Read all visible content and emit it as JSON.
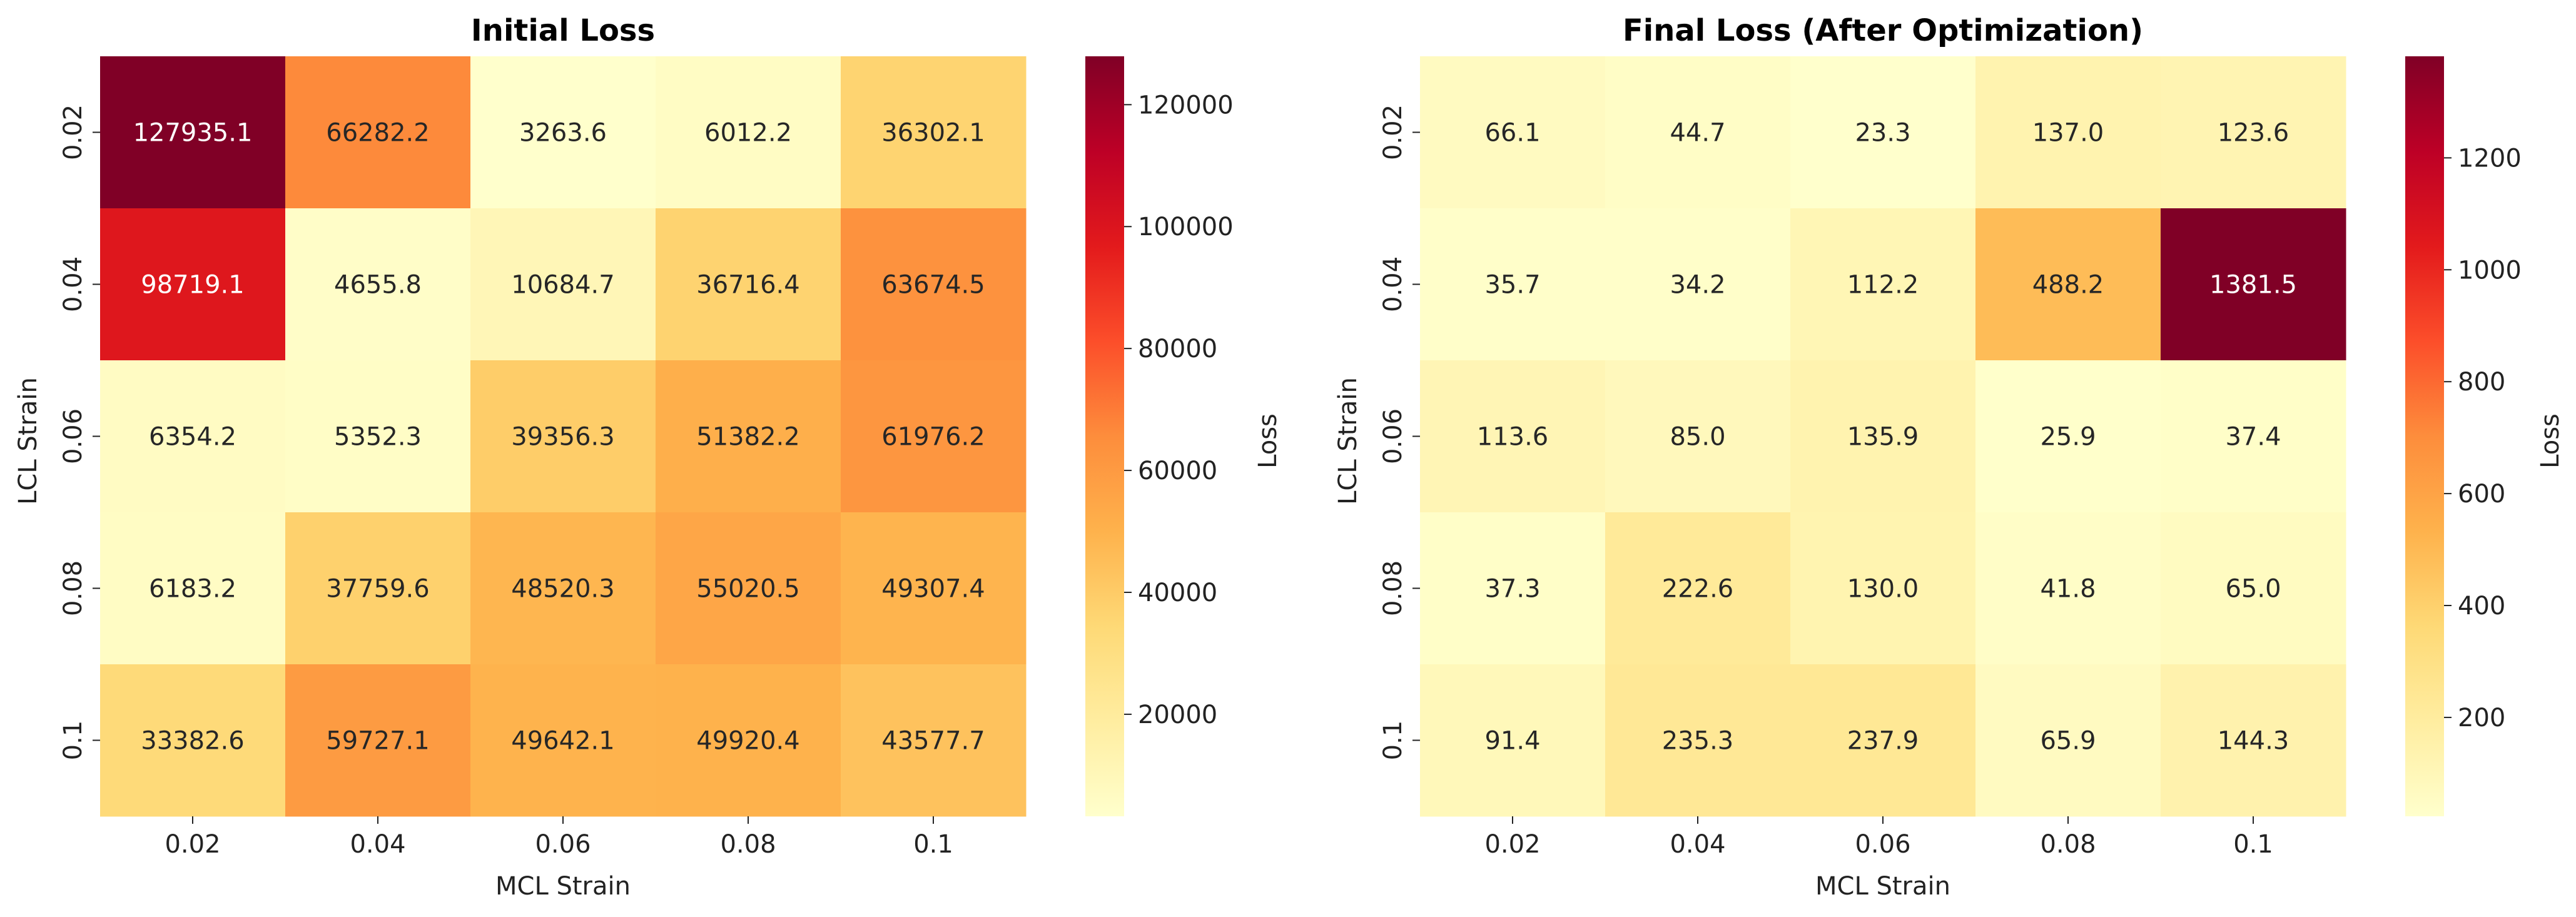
{
  "chart_data": [
    {
      "type": "heatmap",
      "title": "Initial Loss",
      "xlabel": "MCL Strain",
      "ylabel": "LCL Strain",
      "x_categories": [
        "0.02",
        "0.04",
        "0.06",
        "0.08",
        "0.1"
      ],
      "y_categories": [
        "0.02",
        "0.04",
        "0.06",
        "0.08",
        "0.1"
      ],
      "values": [
        [
          127935.1,
          66282.2,
          3263.6,
          6012.2,
          36302.1
        ],
        [
          98719.1,
          4655.8,
          10684.7,
          36716.4,
          63674.5
        ],
        [
          6354.2,
          5352.3,
          39356.3,
          51382.2,
          61976.2
        ],
        [
          6183.2,
          37759.6,
          48520.3,
          55020.5,
          49307.4
        ],
        [
          33382.6,
          59727.1,
          49642.1,
          49920.4,
          43577.7
        ]
      ],
      "labels": [
        [
          "127935.1",
          "66282.2",
          "3263.6",
          "6012.2",
          "36302.1"
        ],
        [
          "98719.1",
          "4655.8",
          "10684.7",
          "36716.4",
          "63674.5"
        ],
        [
          "6354.2",
          "5352.3",
          "39356.3",
          "51382.2",
          "61976.2"
        ],
        [
          "6183.2",
          "37759.6",
          "48520.3",
          "55020.5",
          "49307.4"
        ],
        [
          "33382.6",
          "59727.1",
          "49642.1",
          "49920.4",
          "43577.7"
        ]
      ],
      "colorbar": {
        "label": "Loss",
        "range": [
          3263.6,
          127935.1
        ],
        "ticks": [
          20000,
          40000,
          60000,
          80000,
          100000,
          120000
        ],
        "tick_labels": [
          "20000",
          "40000",
          "60000",
          "80000",
          "100000",
          "120000"
        ]
      },
      "colormap": "YlOrRd"
    },
    {
      "type": "heatmap",
      "title": "Final Loss (After Optimization)",
      "xlabel": "MCL Strain",
      "ylabel": "LCL Strain",
      "x_categories": [
        "0.02",
        "0.04",
        "0.06",
        "0.08",
        "0.1"
      ],
      "y_categories": [
        "0.02",
        "0.04",
        "0.06",
        "0.08",
        "0.1"
      ],
      "values": [
        [
          66.1,
          44.7,
          23.3,
          137.0,
          123.6
        ],
        [
          35.7,
          34.2,
          112.2,
          488.2,
          1381.5
        ],
        [
          113.6,
          85.0,
          135.9,
          25.9,
          37.4
        ],
        [
          37.3,
          222.6,
          130.0,
          41.8,
          65.0
        ],
        [
          91.4,
          235.3,
          237.9,
          65.9,
          144.3
        ]
      ],
      "labels": [
        [
          "66.1",
          "44.7",
          "23.3",
          "137.0",
          "123.6"
        ],
        [
          "35.7",
          "34.2",
          "112.2",
          "488.2",
          "1381.5"
        ],
        [
          "113.6",
          "85.0",
          "135.9",
          "25.9",
          "37.4"
        ],
        [
          "37.3",
          "222.6",
          "130.0",
          "41.8",
          "65.0"
        ],
        [
          "91.4",
          "235.3",
          "237.9",
          "65.9",
          "144.3"
        ]
      ],
      "colorbar": {
        "label": "Loss",
        "range": [
          23.3,
          1381.5
        ],
        "ticks": [
          200,
          400,
          600,
          800,
          1000,
          1200
        ],
        "tick_labels": [
          "200",
          "400",
          "600",
          "800",
          "1000",
          "1200"
        ]
      },
      "colormap": "YlOrRd"
    }
  ]
}
